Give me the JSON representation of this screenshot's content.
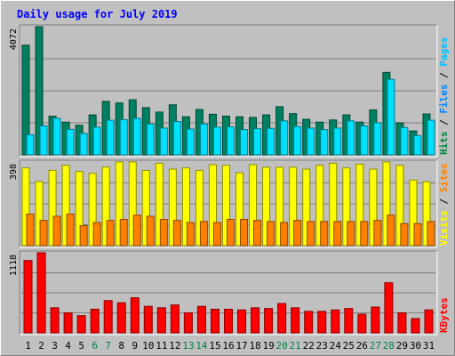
{
  "chart_data": {
    "type": "bar",
    "title": "Daily usage for July 2019",
    "categories": [
      "1",
      "2",
      "3",
      "4",
      "5",
      "6",
      "7",
      "8",
      "9",
      "10",
      "11",
      "12",
      "13",
      "14",
      "15",
      "16",
      "17",
      "18",
      "19",
      "20",
      "21",
      "22",
      "23",
      "24",
      "25",
      "26",
      "27",
      "28",
      "29",
      "30",
      "31"
    ],
    "weekend_days": [
      "6",
      "7",
      "13",
      "14",
      "20",
      "21",
      "27",
      "28"
    ],
    "panels": [
      {
        "id": "hits-panel",
        "ymax": 4072,
        "ymax_label": "4072",
        "grid": true,
        "axis_legend": [
          {
            "text": "Hits",
            "color": "#008040"
          },
          {
            "text": " / ",
            "color": "#000000"
          },
          {
            "text": "Files",
            "color": "#0080ff"
          },
          {
            "text": " / ",
            "color": "#000000"
          },
          {
            "text": "Pages",
            "color": "#00c0ff"
          }
        ],
        "series": [
          {
            "name": "Hits",
            "color": "#008060",
            "values": [
              3485,
              4072,
              1230,
              1040,
              940,
              1270,
              1700,
              1650,
              1750,
              1500,
              1360,
              1590,
              1210,
              1440,
              1290,
              1230,
              1210,
              1190,
              1270,
              1530,
              1310,
              1130,
              1040,
              1110,
              1270,
              1040,
              1430,
              2620,
              1020,
              760,
              1300
            ]
          },
          {
            "name": "Files",
            "color": "#00e0ff",
            "values": [
              640,
              920,
              1160,
              810,
              680,
              880,
              1100,
              1120,
              1160,
              980,
              850,
              1060,
              820,
              980,
              880,
              890,
              800,
              830,
              840,
              1080,
              900,
              850,
              800,
              850,
              1080,
              920,
              1020,
              2400,
              870,
              610,
              1100
            ]
          }
        ]
      },
      {
        "id": "visits-panel",
        "ymax": 398,
        "ymax_label": "398",
        "grid": true,
        "axis_legend": [
          {
            "text": "Visits",
            "color": "#ffff00"
          },
          {
            "text": " / ",
            "color": "#000000"
          },
          {
            "text": "Sites",
            "color": "#ff8000"
          }
        ],
        "series": [
          {
            "name": "Visits",
            "color": "#ffff00",
            "values": [
              370,
              305,
              358,
              382,
              353,
              344,
              374,
              398,
              398,
              358,
              392,
              364,
              370,
              358,
              385,
              382,
              347,
              385,
              373,
              373,
              373,
              364,
              382,
              392,
              370,
              388,
              364,
              398,
              382,
              312,
              304
            ]
          },
          {
            "name": "Sites",
            "color": "#ff8000",
            "values": [
              150,
              120,
              140,
              150,
              95,
              110,
              120,
              125,
              145,
              140,
              125,
              120,
              110,
              115,
              110,
              125,
              125,
              120,
              115,
              110,
              120,
              115,
              115,
              115,
              115,
              115,
              120,
              145,
              105,
              105,
              115
            ]
          }
        ]
      },
      {
        "id": "kbytes-panel",
        "ymax": 1118,
        "ymax_label": "1118",
        "grid": true,
        "axis_legend": [
          {
            "text": "KBytes",
            "color": "#ff0000"
          }
        ],
        "series": [
          {
            "name": "KBytes",
            "color": "#ff0000",
            "values": [
              1010,
              1118,
              350,
              280,
              240,
              330,
              450,
              420,
              490,
              370,
              350,
              390,
              280,
              370,
              330,
              330,
              320,
              350,
              340,
              410,
              350,
              300,
              300,
              320,
              340,
              260,
              360,
              700,
              280,
              200,
              320
            ]
          }
        ]
      }
    ]
  }
}
